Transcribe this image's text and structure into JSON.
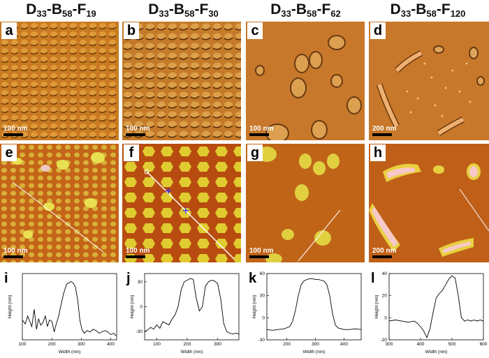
{
  "columns": [
    {
      "title_main": "D",
      "title_sub1": "33",
      "title_mid1": "-B",
      "title_sub2": "58",
      "title_mid2": "-F",
      "title_sub3": "19"
    },
    {
      "title_main": "D",
      "title_sub1": "33",
      "title_mid1": "-B",
      "title_sub2": "58",
      "title_mid2": "-F",
      "title_sub3": "30"
    },
    {
      "title_main": "D",
      "title_sub1": "33",
      "title_mid1": "-B",
      "title_sub2": "58",
      "title_mid2": "-F",
      "title_sub3": "62"
    },
    {
      "title_main": "D",
      "title_sub1": "33",
      "title_mid1": "-B",
      "title_sub2": "58",
      "title_mid2": "-F",
      "title_sub3": "120"
    }
  ],
  "phase_panels": [
    {
      "letter": "a",
      "scale": "100 nm"
    },
    {
      "letter": "b",
      "scale": "100 nm"
    },
    {
      "letter": "c",
      "scale": "100 nm"
    },
    {
      "letter": "d",
      "scale": "200 nm"
    }
  ],
  "height_panels": [
    {
      "letter": "e",
      "scale": "100 nm"
    },
    {
      "letter": "f",
      "scale": "100 nm"
    },
    {
      "letter": "g",
      "scale": "100 nm"
    },
    {
      "letter": "h",
      "scale": "200 nm"
    }
  ],
  "colors": {
    "phase_bg": "#c8781e",
    "height_bg": "#c86414",
    "particle": "#e8dc3c",
    "highlight": "#f7c8c8"
  },
  "chart_data": [
    {
      "type": "line",
      "letter": "i",
      "xlabel": "Width (nm)",
      "ylabel": "Height (nm)",
      "xlim": [
        100,
        420
      ],
      "ylim": [
        -20,
        30
      ],
      "xticks": [
        100,
        200,
        300,
        400
      ],
      "yticks": [],
      "x": [
        100,
        110,
        118,
        125,
        132,
        140,
        148,
        155,
        162,
        170,
        178,
        185,
        192,
        200,
        208,
        215,
        222,
        230,
        240,
        250,
        258,
        265,
        272,
        280,
        288,
        295,
        302,
        310,
        320,
        330,
        340,
        350,
        360,
        370,
        380,
        390,
        400,
        410,
        418
      ],
      "y": [
        -5,
        -8,
        -2,
        -6,
        -10,
        3,
        -12,
        -4,
        -9,
        -7,
        -2,
        -10,
        -5,
        -6,
        -14,
        -8,
        -3,
        5,
        15,
        22,
        23,
        24,
        23,
        20,
        10,
        -5,
        -12,
        -15,
        -13,
        -14,
        -12,
        -13,
        -15,
        -14,
        -13,
        -14,
        -16,
        -15,
        -17
      ]
    },
    {
      "type": "line",
      "letter": "j",
      "xlabel": "Width (nm)",
      "ylabel": "Height (nm)",
      "xlim": [
        60,
        370
      ],
      "ylim": [
        -40,
        40
      ],
      "xticks": [
        100,
        200,
        300
      ],
      "yticks": [
        30,
        0,
        -30
      ],
      "x": [
        60,
        70,
        80,
        90,
        100,
        110,
        120,
        130,
        140,
        150,
        160,
        170,
        180,
        190,
        200,
        210,
        220,
        230,
        240,
        250,
        260,
        270,
        280,
        290,
        300,
        310,
        320,
        330,
        340,
        350,
        360,
        370
      ],
      "y": [
        -30,
        -28,
        -25,
        -27,
        -22,
        -26,
        -18,
        -20,
        -22,
        -15,
        -10,
        0,
        20,
        30,
        32,
        34,
        33,
        10,
        -5,
        0,
        25,
        30,
        32,
        31,
        28,
        10,
        -20,
        -30,
        -32,
        -33,
        -32,
        -33
      ]
    },
    {
      "type": "line",
      "letter": "k",
      "xlabel": "Width (nm)",
      "ylabel": "Height (nm)",
      "xlim": [
        130,
        460
      ],
      "ylim": [
        -30,
        60
      ],
      "xticks": [
        200,
        300,
        400
      ],
      "yticks": [
        60,
        30,
        0,
        -30
      ],
      "x": [
        130,
        150,
        170,
        190,
        210,
        220,
        230,
        240,
        250,
        260,
        270,
        280,
        290,
        300,
        310,
        320,
        330,
        340,
        350,
        360,
        370,
        380,
        400,
        420,
        440,
        460
      ],
      "y": [
        -16,
        -17,
        -16,
        -15,
        -12,
        -5,
        10,
        30,
        45,
        50,
        52,
        53,
        53,
        52,
        52,
        51,
        50,
        45,
        30,
        5,
        -10,
        -14,
        -16,
        -16,
        -15,
        -16
      ]
    },
    {
      "type": "line",
      "letter": "l",
      "xlabel": "Width (nm)",
      "ylabel": "Height (nm)",
      "xlim": [
        300,
        600
      ],
      "ylim": [
        -20,
        40
      ],
      "xticks": [
        300,
        400,
        500,
        600
      ],
      "yticks": [
        40,
        20,
        0,
        -20
      ],
      "x": [
        300,
        320,
        340,
        360,
        380,
        390,
        400,
        410,
        420,
        430,
        440,
        450,
        460,
        470,
        480,
        490,
        500,
        510,
        520,
        530,
        540,
        550,
        560,
        570,
        580,
        590,
        600
      ],
      "y": [
        -3,
        -2,
        -3,
        -4,
        -3,
        -5,
        -8,
        -12,
        -18,
        -10,
        5,
        18,
        22,
        25,
        30,
        35,
        38,
        36,
        20,
        0,
        -3,
        -2,
        -3,
        -2,
        -3,
        -2,
        -3
      ]
    }
  ]
}
